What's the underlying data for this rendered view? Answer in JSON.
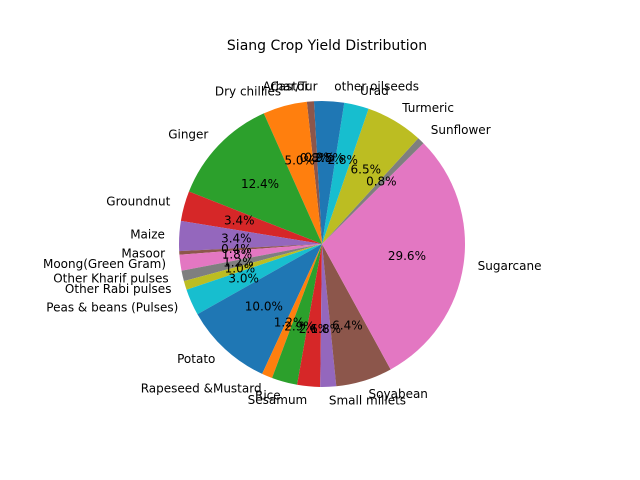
{
  "chart_data": {
    "type": "pie",
    "title": "Siang Crop Yield Distribution",
    "start_angle_deg": 90,
    "direction": "counterclockwise",
    "categories": [
      "Arhar/Tur",
      "Castor",
      "Dry chillies",
      "Ginger",
      "Groundnut",
      "Maize",
      "Masoor",
      "Moong(Green Gram)",
      "Other Kharif pulses",
      "Other Rabi pulses",
      "Peas & beans (Pulses)",
      "Potato",
      "Rapeseed &Mustard",
      "Rice",
      "Sesamum",
      "Small millets",
      "Soyabean",
      "Sugarcane",
      "Sunflower",
      "Turmeric",
      "Urad",
      "other oilseeds"
    ],
    "values": [
      0.9,
      0.8,
      5.0,
      12.4,
      3.4,
      3.4,
      0.4,
      1.8,
      1.2,
      1.0,
      3.0,
      10.0,
      1.2,
      2.9,
      2.6,
      1.8,
      6.4,
      29.6,
      0.8,
      6.5,
      2.8,
      2.5
    ],
    "percent_labels": [
      "0.9%",
      "0.8%",
      "5.0%",
      "12.4%",
      "3.4%",
      "3.4%",
      "0.4%",
      "1.8%",
      "1.2%",
      "1.0%",
      "3.0%",
      "10.0%",
      "1.2%",
      "2.9%",
      "2.6%",
      "1.8%",
      "6.4%",
      "29.6%",
      "0.8%",
      "6.5%",
      "2.8%",
      "2.5%"
    ],
    "colors": [
      "#1f77b4",
      "#8c564b",
      "#ff7f0e",
      "#2ca02c",
      "#d62728",
      "#9467bd",
      "#8c564b",
      "#e377c2",
      "#7f7f7f",
      "#bcbd22",
      "#17becf",
      "#1f77b4",
      "#ff7f0e",
      "#2ca02c",
      "#d62728",
      "#9467bd",
      "#8c564b",
      "#e377c2",
      "#7f7f7f",
      "#bcbd22",
      "#17becf",
      "#1f77b4"
    ]
  }
}
